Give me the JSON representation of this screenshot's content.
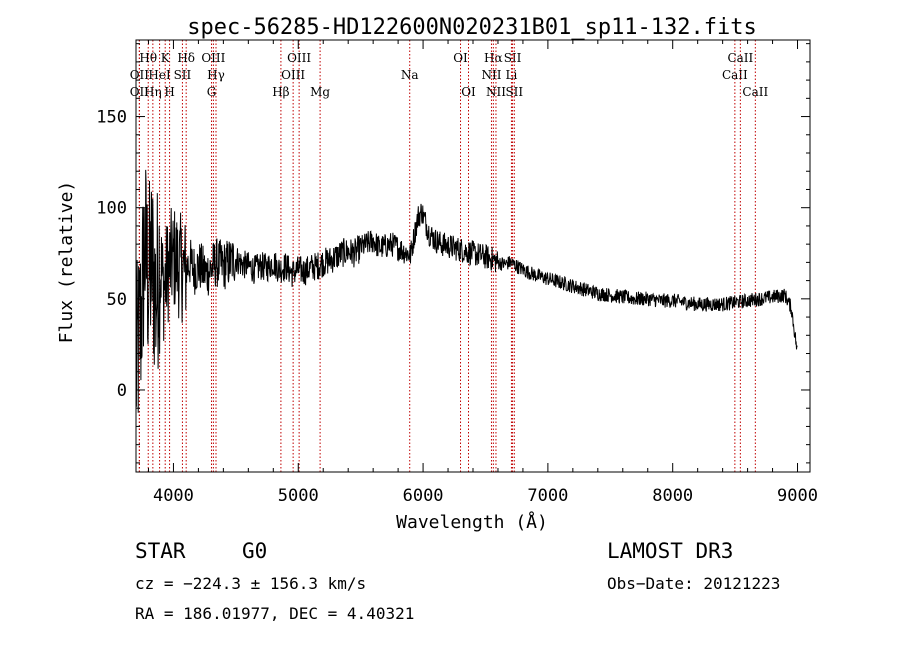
{
  "chart_data": {
    "type": "line",
    "title": "spec-56285-HD122600N020231B01_sp11-132.fits",
    "xlabel": "Wavelength (Å)",
    "ylabel": "Flux (relative)",
    "xlim": [
      3700,
      9100
    ],
    "ylim": [
      -45,
      192
    ],
    "xticks": [
      4000,
      5000,
      6000,
      7000,
      8000,
      9000
    ],
    "yticks": [
      0,
      50,
      100,
      150
    ],
    "xtick_labels": [
      "4000",
      "5000",
      "6000",
      "7000",
      "8000",
      "9000"
    ],
    "ytick_labels": [
      "0",
      "50",
      "100",
      "150"
    ],
    "series": [
      {
        "name": "spectrum",
        "x": [
          3700,
          3740,
          3770,
          3800,
          3830,
          3860,
          3890,
          3920,
          3950,
          3980,
          4010,
          4050,
          4090,
          4130,
          4170,
          4210,
          4260,
          4300,
          4340,
          4400,
          4450,
          4500,
          4550,
          4600,
          4650,
          4700,
          4750,
          4800,
          4850,
          4900,
          4950,
          5000,
          5050,
          5100,
          5150,
          5200,
          5250,
          5300,
          5350,
          5400,
          5450,
          5500,
          5550,
          5600,
          5650,
          5700,
          5750,
          5800,
          5850,
          5900,
          5930,
          5960,
          5990,
          6020,
          6050,
          6100,
          6150,
          6200,
          6250,
          6300,
          6350,
          6400,
          6450,
          6500,
          6550,
          6600,
          6650,
          6700,
          6800,
          6900,
          7000,
          7100,
          7200,
          7300,
          7400,
          7500,
          7600,
          7700,
          7800,
          7900,
          8000,
          8100,
          8200,
          8300,
          8400,
          8500,
          8600,
          8700,
          8800,
          8900,
          8950,
          9000
        ],
        "y": [
          10,
          40,
          80,
          60,
          70,
          50,
          75,
          55,
          65,
          70,
          72,
          68,
          65,
          70,
          66,
          68,
          64,
          66,
          70,
          68,
          70,
          72,
          69,
          68,
          66,
          68,
          67,
          70,
          66,
          68,
          64,
          66,
          65,
          67,
          68,
          70,
          71,
          73,
          75,
          76,
          75,
          78,
          80,
          82,
          78,
          79,
          80,
          78,
          76,
          74,
          85,
          95,
          98,
          92,
          86,
          82,
          80,
          79,
          78,
          77,
          76,
          75,
          74,
          73,
          72,
          70,
          69,
          70,
          66,
          63,
          61,
          59,
          57,
          55,
          53,
          52,
          51,
          50,
          50,
          49,
          49,
          48,
          47,
          47,
          47,
          48,
          49,
          50,
          51,
          52,
          45,
          20
        ]
      }
    ],
    "lines": [
      {
        "name": "OII",
        "wave": 3727,
        "row": 2
      },
      {
        "name": "OII",
        "wave": 3727,
        "row": 3
      },
      {
        "name": "Hθ",
        "wave": 3798,
        "row": 1
      },
      {
        "name": "Hη",
        "wave": 3835,
        "row": 3
      },
      {
        "name": "HeI",
        "wave": 3889,
        "row": 2
      },
      {
        "name": "K",
        "wave": 3934,
        "row": 1
      },
      {
        "name": "H",
        "wave": 3969,
        "row": 3
      },
      {
        "name": "SII",
        "wave": 4072,
        "row": 2
      },
      {
        "name": "Hδ",
        "wave": 4102,
        "row": 1
      },
      {
        "name": "OIII",
        "wave": 4320,
        "row": 1
      },
      {
        "name": "G",
        "wave": 4305,
        "row": 3
      },
      {
        "name": "Hγ",
        "wave": 4341,
        "row": 2
      },
      {
        "name": "Hβ",
        "wave": 4861,
        "row": 3
      },
      {
        "name": "OIII",
        "wave": 4959,
        "row": 2
      },
      {
        "name": "OIII",
        "wave": 5007,
        "row": 1
      },
      {
        "name": "Mg",
        "wave": 5175,
        "row": 3
      },
      {
        "name": "Na",
        "wave": 5893,
        "row": 2
      },
      {
        "name": "OI",
        "wave": 6300,
        "row": 1
      },
      {
        "name": "OI",
        "wave": 6364,
        "row": 3
      },
      {
        "name": "Hα",
        "wave": 6563,
        "row": 1
      },
      {
        "name": "NII",
        "wave": 6548,
        "row": 2
      },
      {
        "name": "NII",
        "wave": 6584,
        "row": 3
      },
      {
        "name": "SII",
        "wave": 6717,
        "row": 1
      },
      {
        "name": "Li",
        "wave": 6708,
        "row": 2
      },
      {
        "name": "SII",
        "wave": 6731,
        "row": 3
      },
      {
        "name": "CaII",
        "wave": 8498,
        "row": 2
      },
      {
        "name": "CaII",
        "wave": 8542,
        "row": 1
      },
      {
        "name": "CaII",
        "wave": 8662,
        "row": 3
      }
    ]
  },
  "footer": {
    "object_class": "STAR",
    "subclass": "G0",
    "survey": "LAMOST DR3",
    "cz": "cz = −224.3 ± 156.3 km/s",
    "obs_date": "Obs−Date: 20121223",
    "radec": "RA = 186.01977, DEC =   4.40321"
  }
}
